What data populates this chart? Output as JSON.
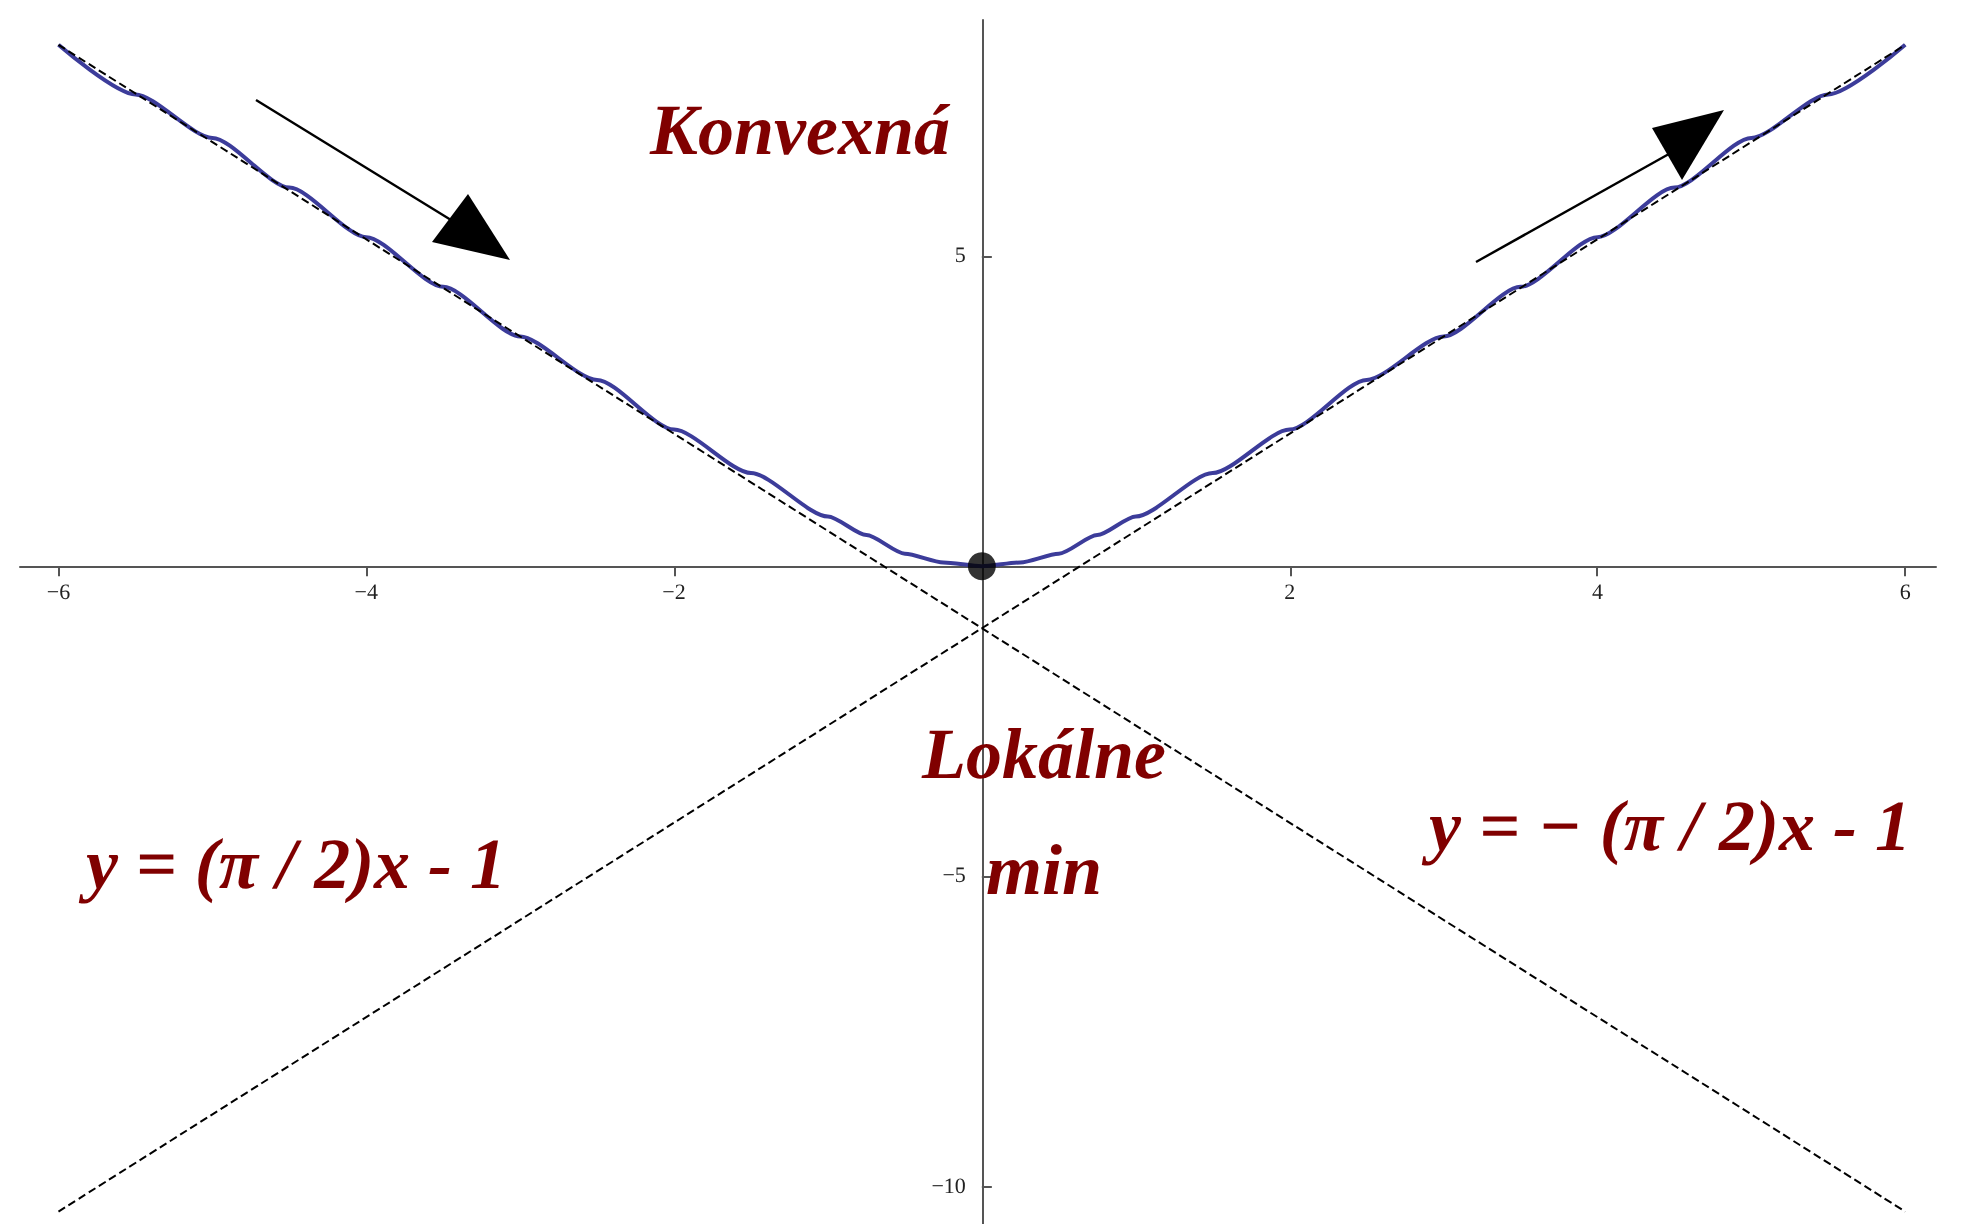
{
  "chart_data": {
    "type": "line",
    "annotations": [
      "Konvexná",
      "Lokálne\nmin",
      "y = (π / 2)x - 1",
      "y = − (π / 2)x - 1"
    ],
    "xlim": [
      -6.25,
      6.2
    ],
    "ylim": [
      -10.6,
      8.8
    ],
    "xticks": [
      -6,
      -4,
      -2,
      2,
      4,
      6
    ],
    "yticks": [
      -10,
      -5,
      5
    ],
    "grid": false,
    "marker": "none",
    "line_style": "solid",
    "series": [
      {
        "color": "#3c3c9a",
        "x": [
          -6,
          -5.5,
          -5,
          -4.5,
          -4,
          -3.5,
          -3,
          -2.5,
          -2,
          -1.5,
          -1,
          -0.75,
          -0.5,
          -0.25,
          0,
          0.25,
          0.5,
          0.75,
          1,
          1.5,
          2,
          2.5,
          3,
          3.5,
          4,
          4.5,
          5,
          5.5,
          6
        ],
        "values": [
          8.4,
          7.6,
          6.9,
          6.1,
          5.3,
          4.5,
          3.7,
          3.0,
          2.2,
          1.5,
          0.8,
          0.5,
          0.2,
          0.06,
          0,
          0.06,
          0.2,
          0.5,
          0.8,
          1.5,
          2.2,
          3.0,
          3.7,
          4.5,
          5.3,
          6.1,
          6.9,
          7.6,
          8.4
        ]
      },
      {
        "color": "#000000",
        "line_style": "dashed",
        "x": [
          -6,
          6
        ],
        "values": [
          -10.4,
          8.4
        ]
      },
      {
        "color": "#000000",
        "line_style": "dashed",
        "x": [
          -6,
          6
        ],
        "values": [
          8.4,
          -10.4
        ]
      },
      {
        "type": "scatter",
        "color": "#000000",
        "marker": "circle",
        "x": [
          0
        ],
        "values": [
          0
        ]
      }
    ]
  }
}
